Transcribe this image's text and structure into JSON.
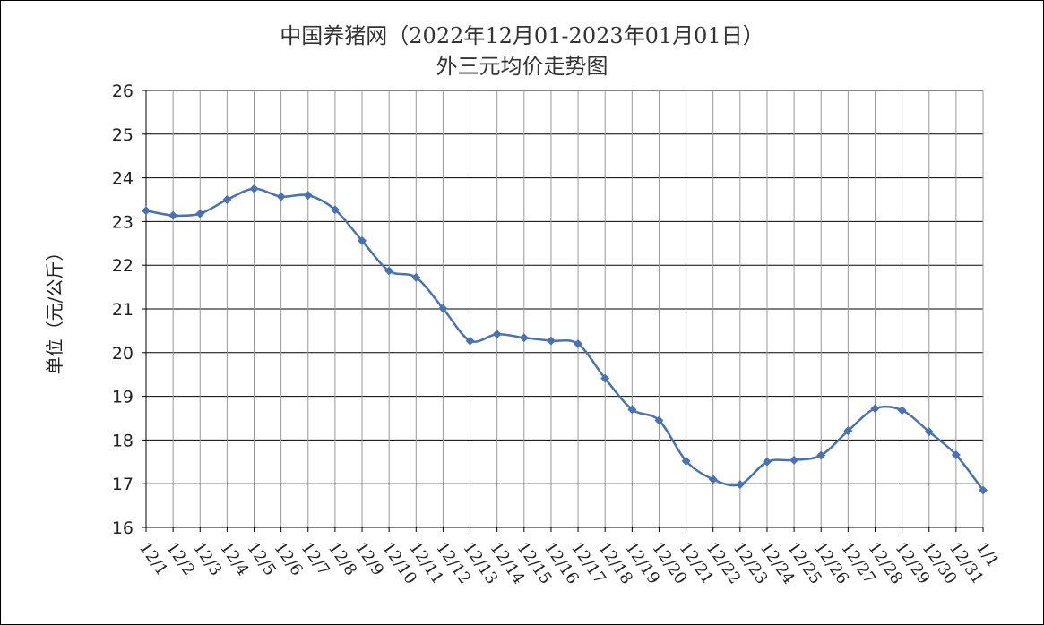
{
  "chart_data": {
    "type": "line",
    "title_line1": "中国养猪网（2022年12月01-2023年01月01日）",
    "title_line2": "外三元均价走势图",
    "xlabel": "",
    "ylabel": "单位（元/公斤）",
    "ylim": [
      16,
      26
    ],
    "yticks": [
      16,
      17,
      18,
      19,
      20,
      21,
      22,
      23,
      24,
      25,
      26
    ],
    "grid": true,
    "categories": [
      "12/1",
      "12/2",
      "12/3",
      "12/4",
      "12/5",
      "12/6",
      "12/7",
      "12/8",
      "12/9",
      "12/10",
      "12/11",
      "12/12",
      "12/13",
      "12/14",
      "12/15",
      "12/16",
      "12/17",
      "12/18",
      "12/19",
      "12/20",
      "12/21",
      "12/22",
      "12/23",
      "12/24",
      "12/25",
      "12/26",
      "12/27",
      "12/28",
      "12/29",
      "12/30",
      "12/31",
      "1/1"
    ],
    "series": [
      {
        "color": "#4a72b0",
        "marker": "diamond",
        "values": [
          23.25,
          23.14,
          23.18,
          23.5,
          23.75,
          23.57,
          23.6,
          23.27,
          22.56,
          21.87,
          21.72,
          21.01,
          20.27,
          20.42,
          20.34,
          20.27,
          20.2,
          19.41,
          18.7,
          18.45,
          17.52,
          17.1,
          16.98,
          17.5,
          17.54,
          17.65,
          18.21,
          18.72,
          18.68,
          18.19,
          17.66,
          16.85
        ]
      }
    ]
  }
}
